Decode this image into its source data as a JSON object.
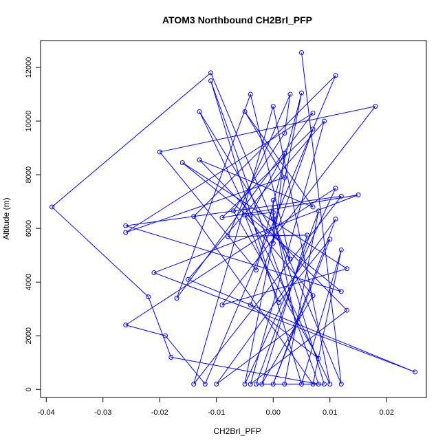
{
  "chart_data": {
    "type": "line",
    "title": "ATOM3 Northbound CH2BrI_PFP",
    "xlabel": "CH2BrI_PFP",
    "ylabel": "Altitude (m)",
    "xlim": [
      -0.041,
      0.027
    ],
    "ylim": [
      -300,
      13000
    ],
    "xticks": [
      -0.04,
      -0.03,
      -0.02,
      -0.01,
      0.0,
      0.01,
      0.02
    ],
    "xtick_labels": [
      "-0.04",
      "-0.03",
      "-0.02",
      "-0.01",
      "0.00",
      "0.01",
      "0.02"
    ],
    "yticks": [
      0,
      2000,
      4000,
      6000,
      8000,
      10000,
      12000
    ],
    "ytick_labels": [
      "0",
      "2000",
      "4000",
      "6000",
      "8000",
      "10000",
      "12000"
    ],
    "grid": false,
    "series_color": "#0000ff",
    "marker": "open-circle",
    "points": [
      {
        "x": 0.005,
        "y": 12550
      },
      {
        "x": 0.012,
        "y": 200
      },
      {
        "x": -0.011,
        "y": 11800
      },
      {
        "x": -0.039,
        "y": 6800
      },
      {
        "x": -0.022,
        "y": 3450
      },
      {
        "x": -0.018,
        "y": 1200
      },
      {
        "x": 0.008,
        "y": 200
      },
      {
        "x": -0.011,
        "y": 11500
      },
      {
        "x": 0.005,
        "y": 200
      },
      {
        "x": 0.012,
        "y": 5200
      },
      {
        "x": 0.007,
        "y": 200
      },
      {
        "x": -0.014,
        "y": 6450
      },
      {
        "x": 0.011,
        "y": 11700
      },
      {
        "x": -0.012,
        "y": 200
      },
      {
        "x": -0.019,
        "y": 2000
      },
      {
        "x": -0.026,
        "y": 2400
      },
      {
        "x": 0.011,
        "y": 7500
      },
      {
        "x": -0.005,
        "y": 200
      },
      {
        "x": 0.005,
        "y": 11050
      },
      {
        "x": -0.003,
        "y": 4450
      },
      {
        "x": -0.02,
        "y": 8850
      },
      {
        "x": 0.018,
        "y": 10550
      },
      {
        "x": -0.009,
        "y": 3150
      },
      {
        "x": 0.013,
        "y": 4500
      },
      {
        "x": -0.016,
        "y": 8450
      },
      {
        "x": 0.012,
        "y": 3650
      },
      {
        "x": -0.026,
        "y": 6100
      },
      {
        "x": 0.012,
        "y": 7200
      },
      {
        "x": -0.014,
        "y": 200
      },
      {
        "x": 0.0,
        "y": 10550
      },
      {
        "x": 0.01,
        "y": 200
      },
      {
        "x": -0.013,
        "y": 10350
      },
      {
        "x": 0.003,
        "y": 4850
      },
      {
        "x": -0.004,
        "y": 11000
      },
      {
        "x": -0.017,
        "y": 3400
      },
      {
        "x": 0.007,
        "y": 10300
      },
      {
        "x": -0.026,
        "y": 5850
      },
      {
        "x": 0.002,
        "y": 7900
      },
      {
        "x": -0.005,
        "y": 10350
      },
      {
        "x": 0.007,
        "y": 6800
      },
      {
        "x": -0.013,
        "y": 8550
      },
      {
        "x": 0.013,
        "y": 2950
      },
      {
        "x": -0.004,
        "y": 200
      },
      {
        "x": 0.009,
        "y": 10000
      },
      {
        "x": -0.015,
        "y": 4100
      },
      {
        "x": 0.025,
        "y": 650
      },
      {
        "x": -0.021,
        "y": 4350
      },
      {
        "x": 0.015,
        "y": 7250
      },
      {
        "x": -0.009,
        "y": 6400
      },
      {
        "x": 0.007,
        "y": 9700
      },
      {
        "x": -0.004,
        "y": 3150
      },
      {
        "x": 0.008,
        "y": 1150
      },
      {
        "x": -0.007,
        "y": 6650
      },
      {
        "x": 0.002,
        "y": 9550
      },
      {
        "x": 0.003,
        "y": 11000
      },
      {
        "x": -0.008,
        "y": 5700
      },
      {
        "x": 0.006,
        "y": 5750
      },
      {
        "x": -0.002,
        "y": 200
      },
      {
        "x": 0.007,
        "y": 3500
      },
      {
        "x": -0.005,
        "y": 6500
      },
      {
        "x": 0.001,
        "y": 3250
      },
      {
        "x": 0.01,
        "y": 5600
      },
      {
        "x": 0.0,
        "y": 200
      },
      {
        "x": 0.011,
        "y": 6350
      },
      {
        "x": -0.01,
        "y": 200
      },
      {
        "x": 0.004,
        "y": 2400
      },
      {
        "x": 0.0,
        "y": 6600
      },
      {
        "x": -0.004,
        "y": 6500
      },
      {
        "x": 0.002,
        "y": 8800
      },
      {
        "x": 0.0,
        "y": 5450
      },
      {
        "x": 0.0,
        "y": 7050
      },
      {
        "x": 0.0,
        "y": 6350
      },
      {
        "x": 0.009,
        "y": 200
      },
      {
        "x": -0.003,
        "y": 200
      },
      {
        "x": 0.008,
        "y": 6650
      },
      {
        "x": 0.002,
        "y": 200
      }
    ]
  }
}
